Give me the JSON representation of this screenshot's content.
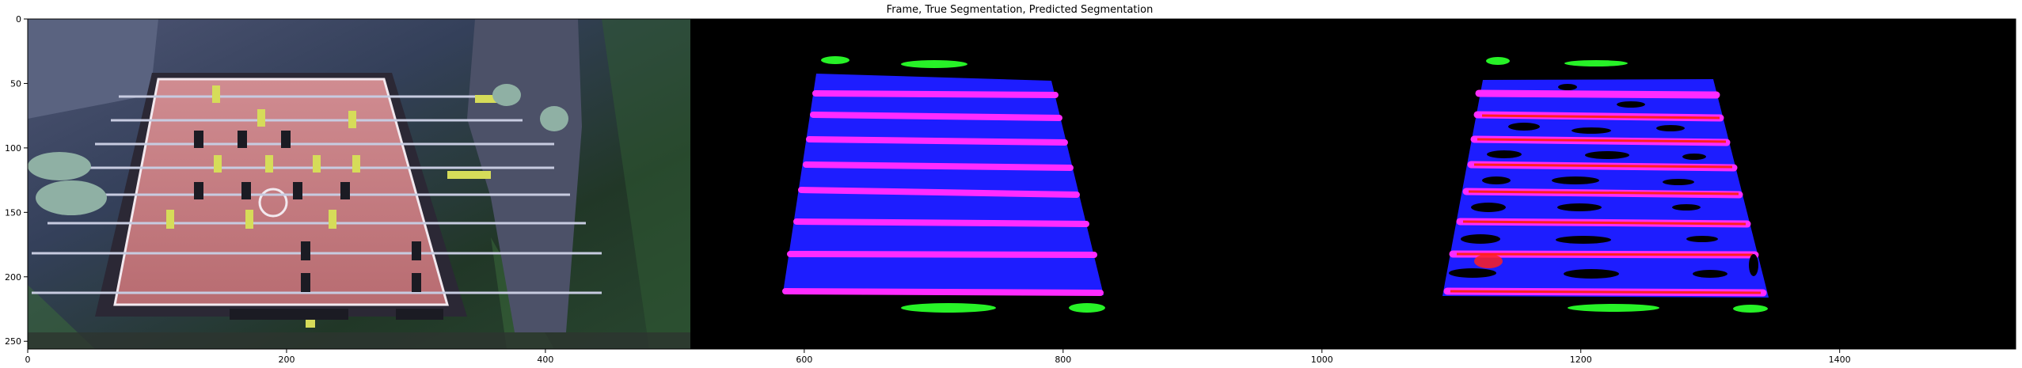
{
  "figure": {
    "title": "Frame, True Segmentation, Predicted Segmentation"
  },
  "axes": {
    "x_ticks": [
      0,
      200,
      400,
      600,
      800,
      1000,
      1200,
      1400
    ],
    "y_ticks": [
      0,
      50,
      100,
      150,
      200,
      250
    ],
    "x_range": [
      0,
      1536
    ],
    "y_range": [
      0,
      256
    ]
  },
  "colors": {
    "background_black": "#000000",
    "table_blue": "#1d1dff",
    "rod_magenta": "#ff2bff",
    "edge_green": "#27f227",
    "pred_red": "#ff2020",
    "frame_red_field": "#c67b80"
  },
  "panels": [
    {
      "name": "frame"
    },
    {
      "name": "true-segmentation"
    },
    {
      "name": "predicted-segmentation"
    }
  ]
}
